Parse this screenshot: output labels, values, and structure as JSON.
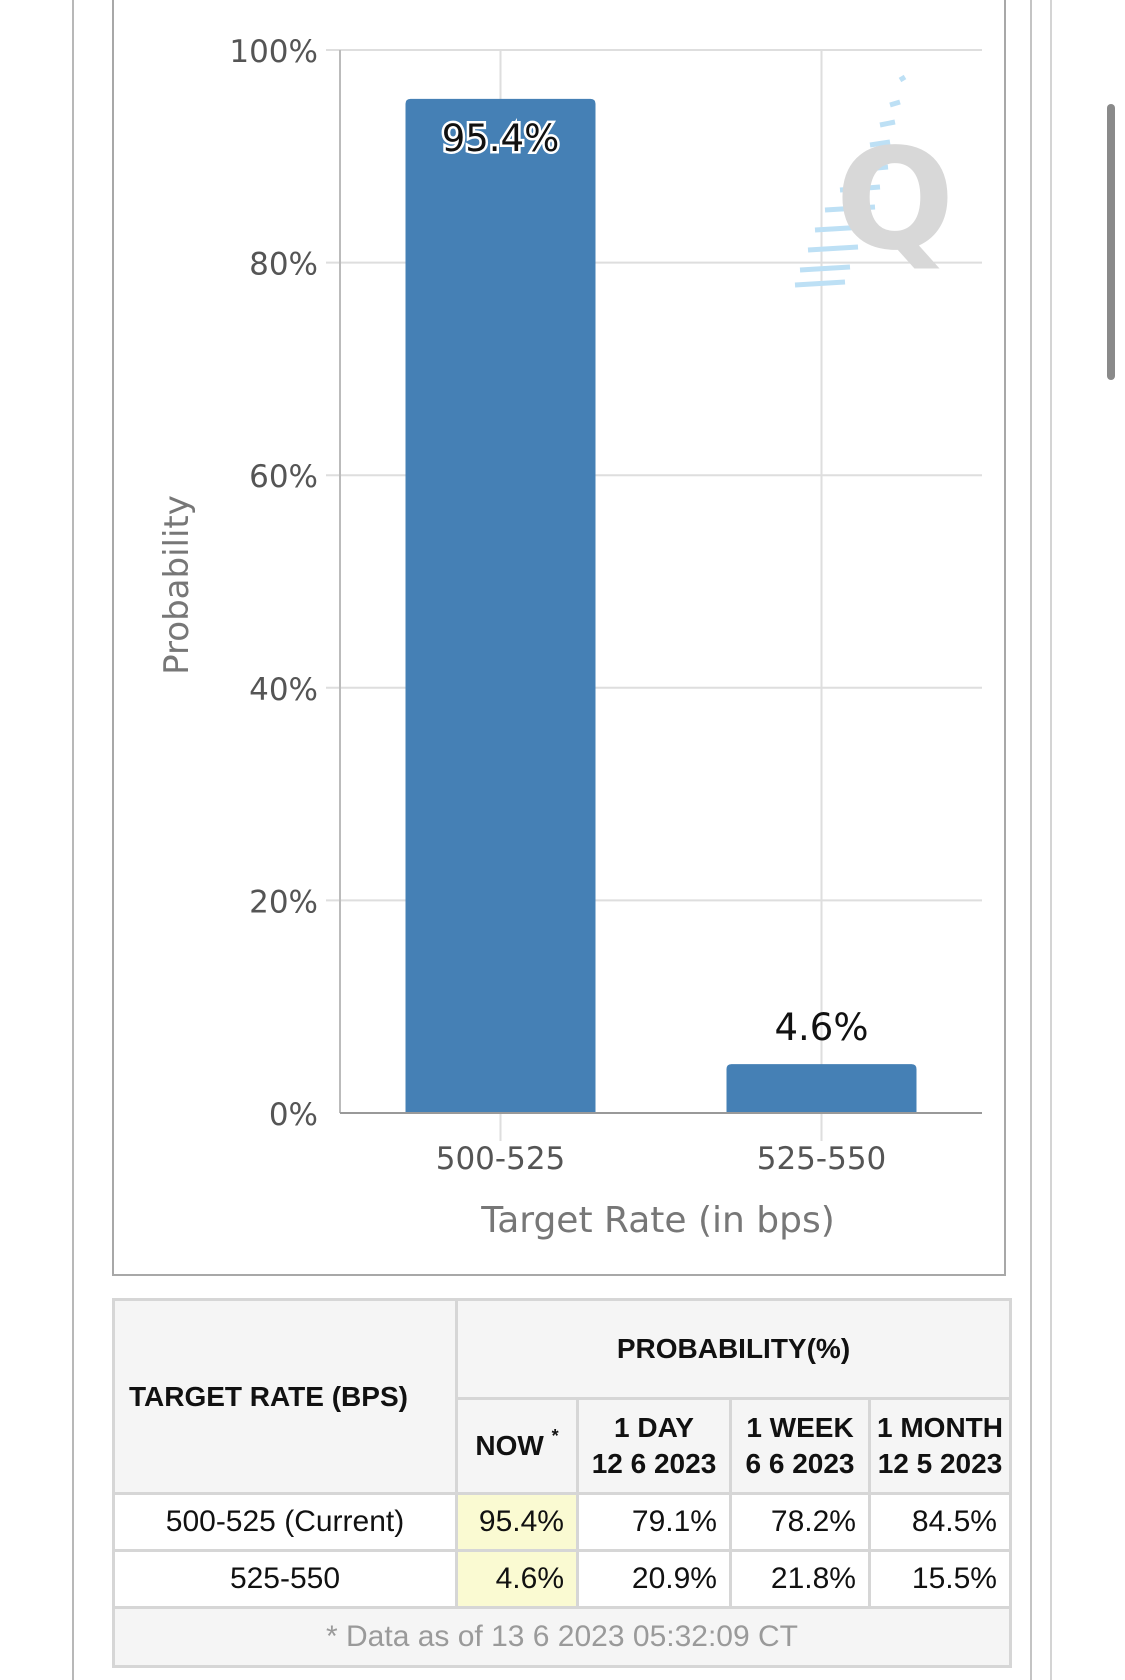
{
  "chart_data": {
    "type": "bar",
    "categories": [
      "500-525",
      "525-550"
    ],
    "values": [
      95.4,
      4.6
    ],
    "value_labels": [
      "95.4%",
      "4.6%"
    ],
    "xlabel": "Target Rate (in bps)",
    "ylabel": "Probability",
    "ylim": [
      0,
      100
    ],
    "yticks": [
      "0%",
      "20%",
      "40%",
      "60%",
      "80%",
      "100%"
    ],
    "grid": true,
    "bar_color": "#4580b5",
    "watermark": "Q"
  },
  "table": {
    "header_target": "TARGET RATE (BPS)",
    "header_probability": "PROBABILITY(%)",
    "col_now": "NOW",
    "col_now_note": "*",
    "col_1day": "1 DAY",
    "col_1day_date": "12 6 2023",
    "col_1week": "1 WEEK",
    "col_1week_date": "6 6 2023",
    "col_1month": "1 MONTH",
    "col_1month_date": "12 5 2023",
    "rows": [
      {
        "rate": "500-525 (Current)",
        "now": "95.4%",
        "day": "79.1%",
        "week": "78.2%",
        "month": "84.5%"
      },
      {
        "rate": "525-550",
        "now": "4.6%",
        "day": "20.9%",
        "week": "21.8%",
        "month": "15.5%"
      }
    ],
    "footnote": "* Data as of 13 6 2023 05:32:09 CT"
  },
  "colors": {
    "bar": "#4580b5",
    "now_highlight": "#fafad2",
    "header_bg": "#f5f5f5"
  }
}
